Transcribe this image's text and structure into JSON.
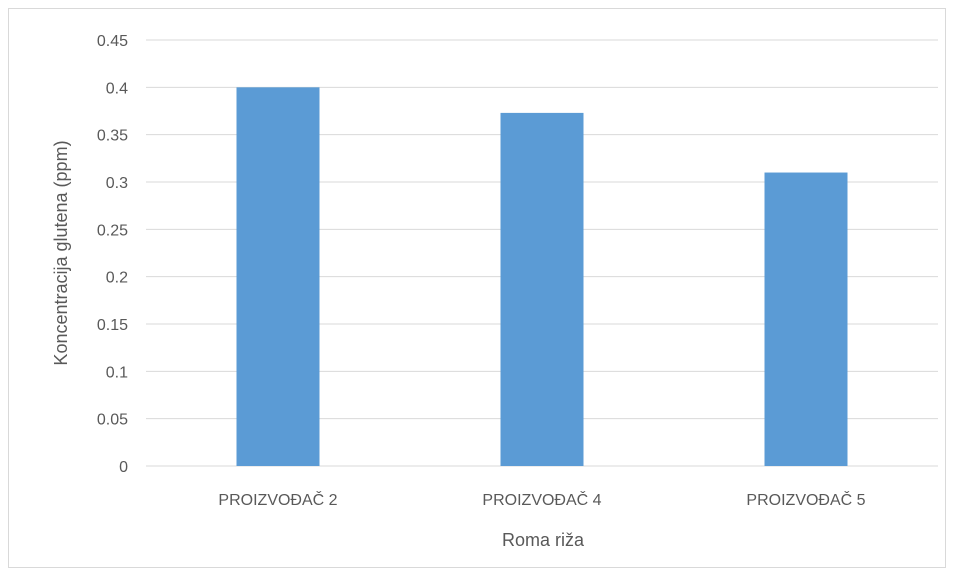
{
  "chart_data": {
    "type": "bar",
    "title": "",
    "xlabel": "Roma riža",
    "ylabel": "Koncentracija glutena (ppm)",
    "categories": [
      "PROIZVOĐAČ 2",
      "PROIZVOĐAČ 4",
      "PROIZVOĐAČ 5"
    ],
    "values": [
      0.4,
      0.373,
      0.31
    ],
    "ylim": [
      0,
      0.45
    ],
    "yticks": [
      "0",
      "0.05",
      "0.1",
      "0.15",
      "0.2",
      "0.25",
      "0.3",
      "0.35",
      "0.4",
      "0.45"
    ],
    "grid": true,
    "legend": "none",
    "colors": {
      "bar": "#5b9bd5",
      "grid": "#d9d9d9",
      "text": "#595959"
    }
  }
}
